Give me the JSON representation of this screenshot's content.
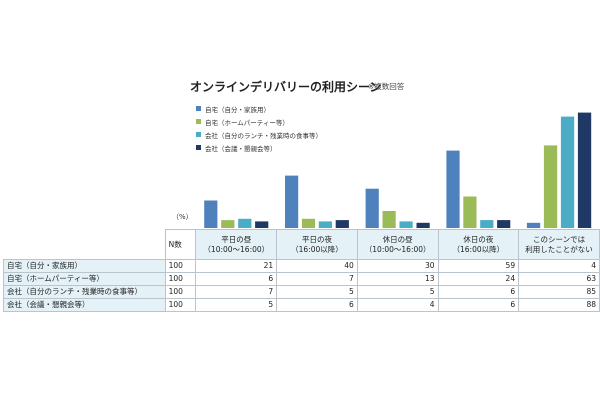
{
  "chart_data": {
    "type": "bar",
    "title": "オンラインデリバリーの利用シーン",
    "title_note": "※複数回答",
    "unit_label": "（%）",
    "n_header": "N数",
    "categories": [
      [
        "平日の昼",
        "（10:00～16:00）"
      ],
      [
        "平日の夜",
        "（16:00以降）"
      ],
      [
        "休日の昼",
        "（10:00～16:00）"
      ],
      [
        "休日の夜",
        "（16:00以降）"
      ],
      [
        "このシーンでは",
        "利用したことがない"
      ]
    ],
    "ylim": [
      0,
      90
    ],
    "legend": "top-left",
    "series": [
      {
        "name": "自宅（自分・家族用）",
        "color": "#4f81bd",
        "n": 100,
        "values": [
          21,
          40,
          30,
          59,
          4
        ]
      },
      {
        "name": "自宅（ホームパーティー等）",
        "color": "#9bbb59",
        "n": 100,
        "values": [
          6,
          7,
          13,
          24,
          63
        ]
      },
      {
        "name": "会社（自分のランチ・残業時の食事等）",
        "color": "#4bacc6",
        "n": 100,
        "values": [
          7,
          5,
          5,
          6,
          85
        ]
      },
      {
        "name": "会社（会議・懇親会等）",
        "color": "#1f3864",
        "n": 100,
        "values": [
          5,
          6,
          4,
          6,
          88
        ]
      }
    ]
  }
}
